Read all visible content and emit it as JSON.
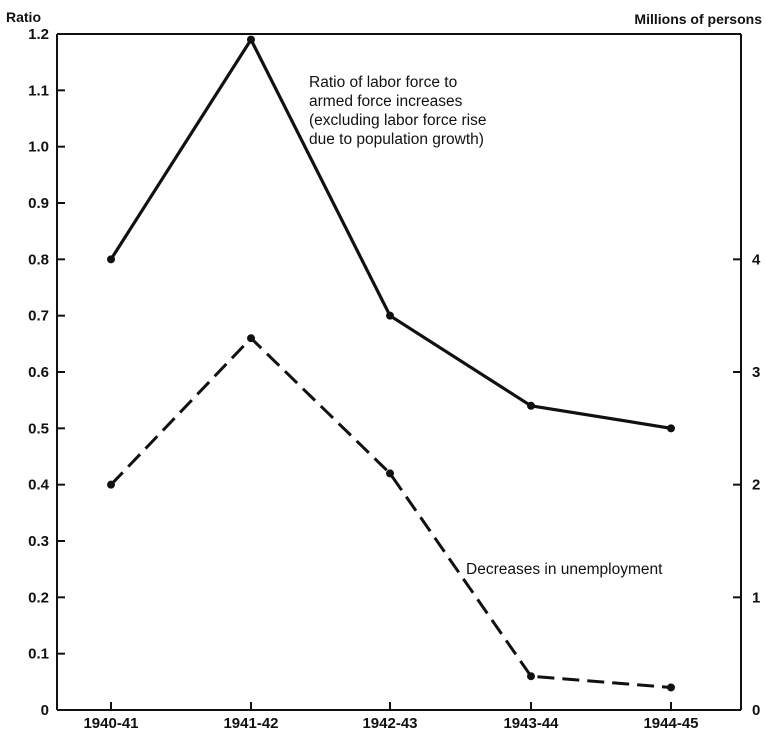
{
  "chart_data": {
    "type": "line",
    "categories": [
      "1940-41",
      "1941-42",
      "1942-43",
      "1943-44",
      "1944-45"
    ],
    "y_left": {
      "label": "Ratio",
      "ylim": [
        0,
        1.2
      ],
      "ticks": [
        "0",
        "0.1",
        "0.2",
        "0.3",
        "0.4",
        "0.5",
        "0.6",
        "0.7",
        "0.8",
        "0.9",
        "1.0",
        "1.1",
        "1.2"
      ]
    },
    "y_right": {
      "label": "Millions of persons",
      "ylim": [
        0,
        6
      ],
      "ticks": [
        "0",
        "1",
        "2",
        "3",
        "4"
      ]
    },
    "series": [
      {
        "name": "Ratio of labor force to armed force increases (excluding labor force rise due to population growth)",
        "axis": "left",
        "style": "solid",
        "values": [
          0.8,
          1.19,
          0.7,
          0.54,
          0.5
        ]
      },
      {
        "name": "Decreases in unemployment",
        "axis": "right",
        "style": "dashed",
        "values": [
          2.0,
          3.3,
          2.1,
          0.3,
          0.2
        ]
      }
    ],
    "annotations": {
      "solid_label_lines": [
        "Ratio of labor force to",
        "armed force increases",
        "(excluding labor force rise",
        "due to population growth)"
      ],
      "dashed_label": "Decreases in unemployment"
    },
    "grid": false,
    "legend": "none"
  }
}
